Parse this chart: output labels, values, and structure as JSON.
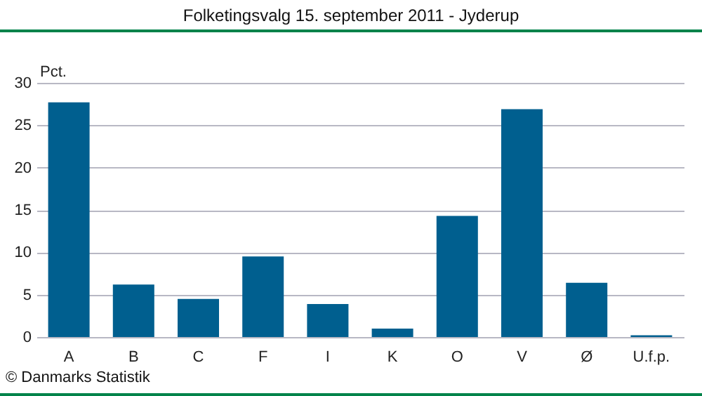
{
  "chart_data": {
    "type": "bar",
    "title": "Folketingsvalg 15. september 2011 - Jyderup",
    "ylabel": "Pct.",
    "categories": [
      "A",
      "B",
      "C",
      "F",
      "I",
      "K",
      "O",
      "V",
      "Ø",
      "U.f.p."
    ],
    "values": [
      27.7,
      6.2,
      4.5,
      9.5,
      3.9,
      1.0,
      14.3,
      26.9,
      6.4,
      0.2
    ],
    "color": "#005f8f",
    "ylim": [
      0,
      30
    ],
    "yticks": [
      0,
      5,
      10,
      15,
      20,
      25,
      30
    ],
    "grid": "y",
    "annotations": [
      "© Danmarks Statistik"
    ]
  }
}
